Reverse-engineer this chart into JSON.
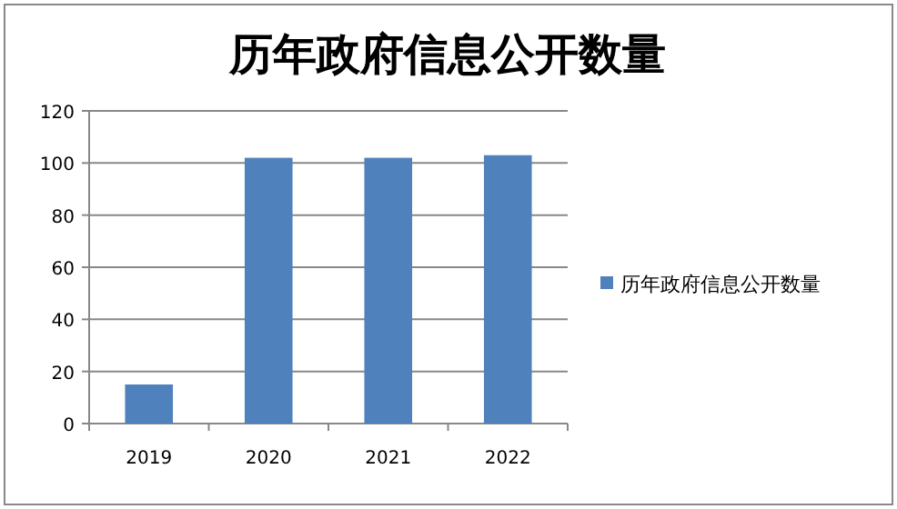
{
  "chart_data": {
    "type": "bar",
    "title": "历年政府信息公开数量",
    "categories": [
      "2019",
      "2020",
      "2021",
      "2022"
    ],
    "series": [
      {
        "name": "历年政府信息公开数量",
        "color": "#4f81bd",
        "values": [
          15,
          102,
          102,
          103
        ]
      }
    ],
    "ylim": [
      0,
      120
    ],
    "yticks": [
      0,
      20,
      40,
      60,
      80,
      100,
      120
    ],
    "grid": "y",
    "legend": "right"
  }
}
